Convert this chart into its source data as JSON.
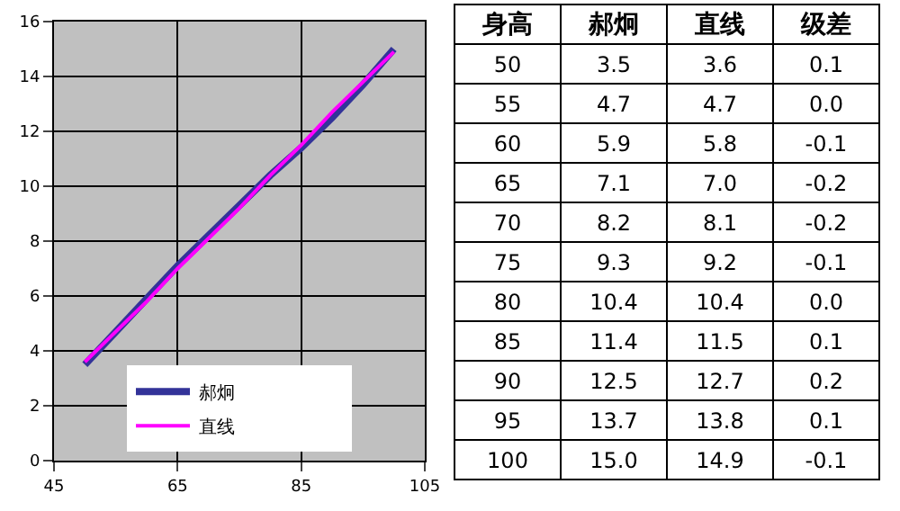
{
  "chart_data": [
    {
      "type": "line",
      "x": [
        50,
        55,
        60,
        65,
        70,
        75,
        80,
        85,
        90,
        95,
        100
      ],
      "xlim": [
        45,
        105
      ],
      "xticks": [
        45,
        65,
        85,
        105
      ],
      "ylim": [
        0,
        16
      ],
      "yticks": [
        0,
        2,
        4,
        6,
        8,
        10,
        12,
        14,
        16
      ],
      "grid": true,
      "legend": "bottom",
      "marker": "none",
      "line_style": "solid",
      "series": [
        {
          "name": "郝炯",
          "color": "#333399",
          "values": [
            3.5,
            4.7,
            5.9,
            7.1,
            8.2,
            9.3,
            10.4,
            11.4,
            12.5,
            13.7,
            15.0
          ]
        },
        {
          "name": "直线",
          "color": "#ff00ff",
          "values": [
            3.6,
            4.7,
            5.8,
            7.0,
            8.1,
            9.2,
            10.4,
            11.5,
            12.7,
            13.8,
            14.9
          ]
        }
      ]
    },
    {
      "type": "heatmap",
      "ylabel": "身高",
      "categories": [
        "郝炯",
        "直线",
        "级差"
      ],
      "y_categories": [
        "50",
        "55",
        "60",
        "65",
        "70",
        "75",
        "80",
        "85",
        "90",
        "95",
        "100"
      ],
      "cells": [
        [
          3.5,
          3.6,
          0.1
        ],
        [
          4.7,
          4.7,
          0.0
        ],
        [
          5.9,
          5.8,
          -0.1
        ],
        [
          7.1,
          7.0,
          -0.2
        ],
        [
          8.2,
          8.1,
          -0.2
        ],
        [
          9.3,
          9.2,
          -0.1
        ],
        [
          10.4,
          10.4,
          0.0
        ],
        [
          11.4,
          11.5,
          0.1
        ],
        [
          12.5,
          12.7,
          0.2
        ],
        [
          13.7,
          13.8,
          0.1
        ],
        [
          15.0,
          14.9,
          -0.1
        ]
      ],
      "cell_labels": [
        [
          "3.5",
          "3.6",
          "0.1"
        ],
        [
          "4.7",
          "4.7",
          "0.0"
        ],
        [
          "5.9",
          "5.8",
          "-0.1"
        ],
        [
          "7.1",
          "7.0",
          "-0.2"
        ],
        [
          "8.2",
          "8.1",
          "-0.2"
        ],
        [
          "9.3",
          "9.2",
          "-0.1"
        ],
        [
          "10.4",
          "10.4",
          "0.0"
        ],
        [
          "11.4",
          "11.5",
          "0.1"
        ],
        [
          "12.5",
          "12.7",
          "0.2"
        ],
        [
          "13.7",
          "13.8",
          "0.1"
        ],
        [
          "15.0",
          "14.9",
          "-0.1"
        ]
      ]
    }
  ]
}
